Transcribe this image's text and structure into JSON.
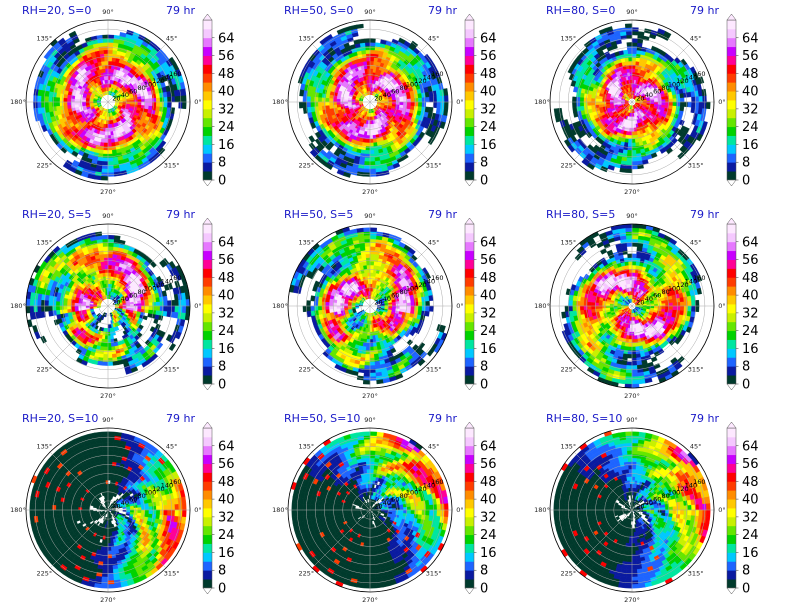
{
  "chart_data": {
    "type": "heatmap",
    "layout": "3x3 polar panels",
    "time_label": "79 hr",
    "angle_ticks": [
      "90°",
      "45°",
      "0°",
      "315°",
      "270°",
      "225°",
      "180°",
      "135°"
    ],
    "radius_ticks": [
      "20",
      "40",
      "60",
      "80",
      "100",
      "120",
      "140",
      "160"
    ],
    "colorbar_ticks": [
      "64",
      "56",
      "48",
      "40",
      "32",
      "24",
      "16",
      "8",
      "0"
    ],
    "colorbar_range": [
      0,
      72
    ],
    "colormap": [
      "#003a2c",
      "#0a1aa0",
      "#1e64ff",
      "#00c8ff",
      "#00e6a0",
      "#00d200",
      "#64e600",
      "#c8f000",
      "#ffff00",
      "#ffc800",
      "#ff8c00",
      "#ff3c00",
      "#ff0000",
      "#ff0096",
      "#c800ff",
      "#e678ff",
      "#f5c8ff",
      "#fde8ff"
    ],
    "panels": [
      {
        "title": "RH=20, S=0",
        "rh": 20,
        "shear": 0,
        "time": "79 hr",
        "field": "symmetric ring",
        "ring_peak_radius": 70,
        "eye_radius": 18
      },
      {
        "title": "RH=50, S=0",
        "rh": 50,
        "shear": 0,
        "time": "79 hr",
        "field": "symmetric ring",
        "ring_peak_radius": 60,
        "eye_radius": 15
      },
      {
        "title": "RH=80, S=0",
        "rh": 80,
        "shear": 0,
        "time": "79 hr",
        "field": "symmetric ring",
        "ring_peak_radius": 45,
        "eye_radius": 10
      },
      {
        "title": "RH=20, S=5",
        "rh": 20,
        "shear": 5,
        "time": "79 hr",
        "field": "asymmetric spiral",
        "ring_peak_radius": 70,
        "eye_radius": 15
      },
      {
        "title": "RH=50, S=5",
        "rh": 50,
        "shear": 5,
        "time": "79 hr",
        "field": "asymmetric spiral",
        "ring_peak_radius": 70,
        "eye_radius": 15
      },
      {
        "title": "RH=80, S=5",
        "rh": 80,
        "shear": 5,
        "time": "79 hr",
        "field": "asymmetric spiral",
        "ring_peak_radius": 60,
        "eye_radius": 12
      },
      {
        "title": "RH=20, S=10",
        "rh": 20,
        "shear": 10,
        "time": "79 hr",
        "field": "sheared sector",
        "sector_center_deg": 345
      },
      {
        "title": "RH=50, S=10",
        "rh": 50,
        "shear": 10,
        "time": "79 hr",
        "field": "sheared sector",
        "sector_center_deg": 40
      },
      {
        "title": "RH=80, S=10",
        "rh": 80,
        "shear": 10,
        "time": "79 hr",
        "field": "sheared sector",
        "sector_center_deg": 20
      }
    ]
  }
}
